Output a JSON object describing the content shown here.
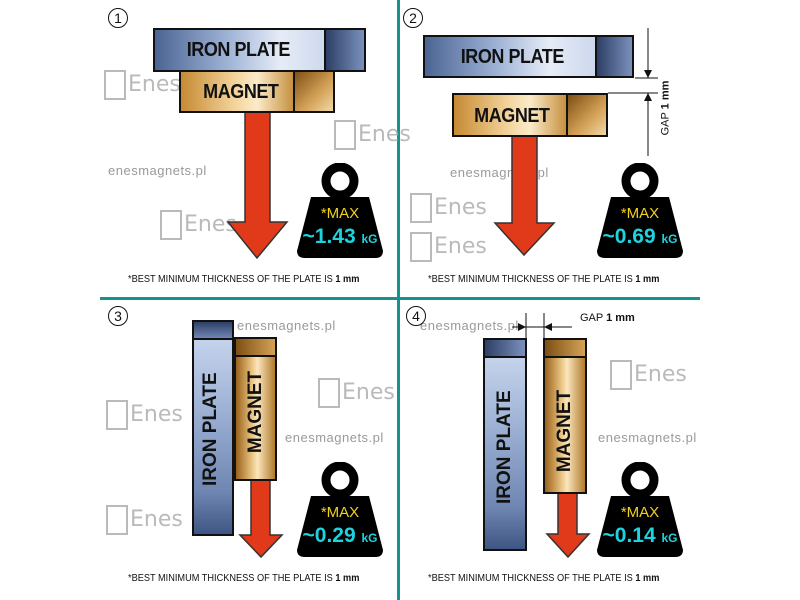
{
  "panels": [
    {
      "number": "1",
      "iron_label": "IRON PLATE",
      "magnet_label": "MAGNET",
      "max_label": "*MAX",
      "force_value": "~1.43",
      "force_unit": "kG",
      "footnote": "*BEST MINIMUM THICKNESS OF THE PLATE IS",
      "footnote_bold": "1 mm"
    },
    {
      "number": "2",
      "iron_label": "IRON PLATE",
      "magnet_label": "MAGNET",
      "gap_label": "GAP",
      "gap_value": "1 mm",
      "max_label": "*MAX",
      "force_value": "~0.69",
      "force_unit": "kG",
      "footnote": "*BEST MINIMUM THICKNESS OF THE PLATE IS",
      "footnote_bold": "1 mm"
    },
    {
      "number": "3",
      "iron_label": "IRON  PLATE",
      "magnet_label": "MAGNET",
      "max_label": "*MAX",
      "force_value": "~0.29",
      "force_unit": "kG",
      "footnote": "*BEST MINIMUM THICKNESS OF THE PLATE IS",
      "footnote_bold": "1 mm"
    },
    {
      "number": "4",
      "iron_label": "IRON PLATE",
      "magnet_label": "MAGNET",
      "gap_label": "GAP",
      "gap_value": "1 mm",
      "max_label": "*MAX",
      "force_value": "~0.14",
      "force_unit": "kG",
      "footnote": "*BEST MINIMUM THICKNESS OF THE PLATE IS",
      "footnote_bold": "1 mm"
    }
  ],
  "watermark": {
    "url": "enesmagnets.pl",
    "logo": "Enes"
  },
  "colors": {
    "divider": "#13928f",
    "arrow": "#e03a1a",
    "max_text": "#f2d21b",
    "value_text": "#1ed3de"
  },
  "icons": {
    "weight": "weight-icon",
    "arrow": "arrow-down-icon"
  }
}
